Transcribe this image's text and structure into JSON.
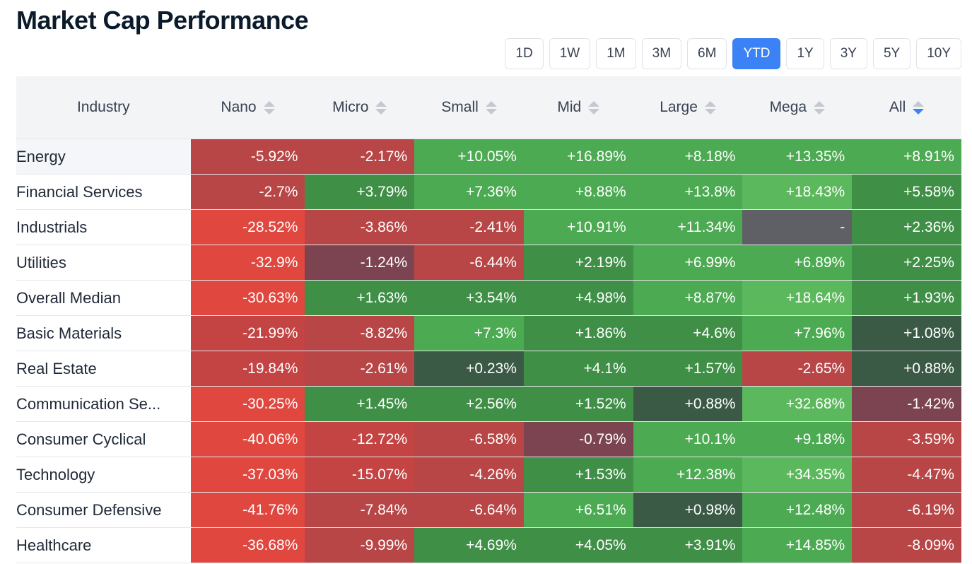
{
  "title": "Market Cap Performance",
  "periods": [
    {
      "label": "1D",
      "active": false
    },
    {
      "label": "1W",
      "active": false
    },
    {
      "label": "1M",
      "active": false
    },
    {
      "label": "3M",
      "active": false
    },
    {
      "label": "6M",
      "active": false
    },
    {
      "label": "YTD",
      "active": true
    },
    {
      "label": "1Y",
      "active": false
    },
    {
      "label": "3Y",
      "active": false
    },
    {
      "label": "5Y",
      "active": false
    },
    {
      "label": "10Y",
      "active": false
    }
  ],
  "columns": [
    "Industry",
    "Nano",
    "Micro",
    "Small",
    "Mid",
    "Large",
    "Mega",
    "All"
  ],
  "sort_column": "All",
  "colors": {
    "active_blue": "#3b82f6",
    "strong_red": "#e0473f",
    "mid_red": "#b84646",
    "dark_red": "#7b4450",
    "bright_green": "#5cb85c",
    "mid_green": "#3f9a4a",
    "green": "#4caa52",
    "dark_green": "#3a5a45",
    "neutral_gray": "#5f6066"
  },
  "rows": [
    {
      "industry": "Energy",
      "values": [
        "-5.92%",
        "-2.17%",
        "+10.05%",
        "+16.89%",
        "+8.18%",
        "+13.35%",
        "+8.91%"
      ],
      "colors": [
        "#b84646",
        "#b84646",
        "#4caa52",
        "#4caa52",
        "#4caa52",
        "#4caa52",
        "#4caa52"
      ]
    },
    {
      "industry": "Financial Services",
      "values": [
        "-2.7%",
        "+3.79%",
        "+7.36%",
        "+8.88%",
        "+13.8%",
        "+18.43%",
        "+5.58%"
      ],
      "colors": [
        "#b84646",
        "#3f8f47",
        "#4caa52",
        "#4caa52",
        "#4caa52",
        "#5cb85c",
        "#3f8f47"
      ]
    },
    {
      "industry": "Industrials",
      "values": [
        "-28.52%",
        "-3.86%",
        "-2.41%",
        "+10.91%",
        "+11.34%",
        "-",
        "+2.36%"
      ],
      "colors": [
        "#e0473f",
        "#b84646",
        "#b84646",
        "#4caa52",
        "#4caa52",
        "#5f6066",
        "#3f8f47"
      ]
    },
    {
      "industry": "Utilities",
      "values": [
        "-32.9%",
        "-1.24%",
        "-6.44%",
        "+2.19%",
        "+6.99%",
        "+6.89%",
        "+2.25%"
      ],
      "colors": [
        "#e0473f",
        "#7b4450",
        "#b84646",
        "#3f8f47",
        "#4caa52",
        "#4caa52",
        "#3f8f47"
      ]
    },
    {
      "industry": "Overall Median",
      "values": [
        "-30.63%",
        "+1.63%",
        "+3.54%",
        "+4.98%",
        "+8.87%",
        "+18.64%",
        "+1.93%"
      ],
      "colors": [
        "#e0473f",
        "#3f8f47",
        "#3f8f47",
        "#3f8f47",
        "#4caa52",
        "#5cb85c",
        "#3f8f47"
      ]
    },
    {
      "industry": "Basic Materials",
      "values": [
        "-21.99%",
        "-8.82%",
        "+7.3%",
        "+1.86%",
        "+4.6%",
        "+7.96%",
        "+1.08%"
      ],
      "colors": [
        "#c44343",
        "#b84646",
        "#4caa52",
        "#3f8f47",
        "#3f8f47",
        "#4caa52",
        "#3a5a45"
      ]
    },
    {
      "industry": "Real Estate",
      "values": [
        "-19.84%",
        "-2.61%",
        "+0.23%",
        "+4.1%",
        "+1.57%",
        "-2.65%",
        "+0.88%"
      ],
      "colors": [
        "#c44343",
        "#b84646",
        "#3a5a45",
        "#3f8f47",
        "#3f8f47",
        "#b84646",
        "#3a5a45"
      ]
    },
    {
      "industry": "Communication Se...",
      "values": [
        "-30.25%",
        "+1.45%",
        "+2.56%",
        "+1.52%",
        "+0.88%",
        "+32.68%",
        "-1.42%"
      ],
      "colors": [
        "#e0473f",
        "#3f8f47",
        "#3f8f47",
        "#3f8f47",
        "#3a5a45",
        "#5cb85c",
        "#7b4450"
      ]
    },
    {
      "industry": "Consumer Cyclical",
      "values": [
        "-40.06%",
        "-12.72%",
        "-6.58%",
        "-0.79%",
        "+10.1%",
        "+9.18%",
        "-3.59%"
      ],
      "colors": [
        "#e0473f",
        "#c44343",
        "#b84646",
        "#7b4450",
        "#4caa52",
        "#4caa52",
        "#b84646"
      ]
    },
    {
      "industry": "Technology",
      "values": [
        "-37.03%",
        "-15.07%",
        "-4.26%",
        "+1.53%",
        "+12.38%",
        "+34.35%",
        "-4.47%"
      ],
      "colors": [
        "#e0473f",
        "#c44343",
        "#b84646",
        "#3f8f47",
        "#4caa52",
        "#5cb85c",
        "#b84646"
      ]
    },
    {
      "industry": "Consumer Defensive",
      "values": [
        "-41.76%",
        "-7.84%",
        "-6.64%",
        "+6.51%",
        "+0.98%",
        "+12.48%",
        "-6.19%"
      ],
      "colors": [
        "#e0473f",
        "#b84646",
        "#b84646",
        "#4caa52",
        "#3a5a45",
        "#4caa52",
        "#b84646"
      ]
    },
    {
      "industry": "Healthcare",
      "values": [
        "-36.68%",
        "-9.99%",
        "+4.69%",
        "+4.05%",
        "+3.91%",
        "+14.85%",
        "-8.09%"
      ],
      "colors": [
        "#e0473f",
        "#b84646",
        "#3f8f47",
        "#3f8f47",
        "#3f8f47",
        "#4caa52",
        "#b84646"
      ]
    }
  ]
}
